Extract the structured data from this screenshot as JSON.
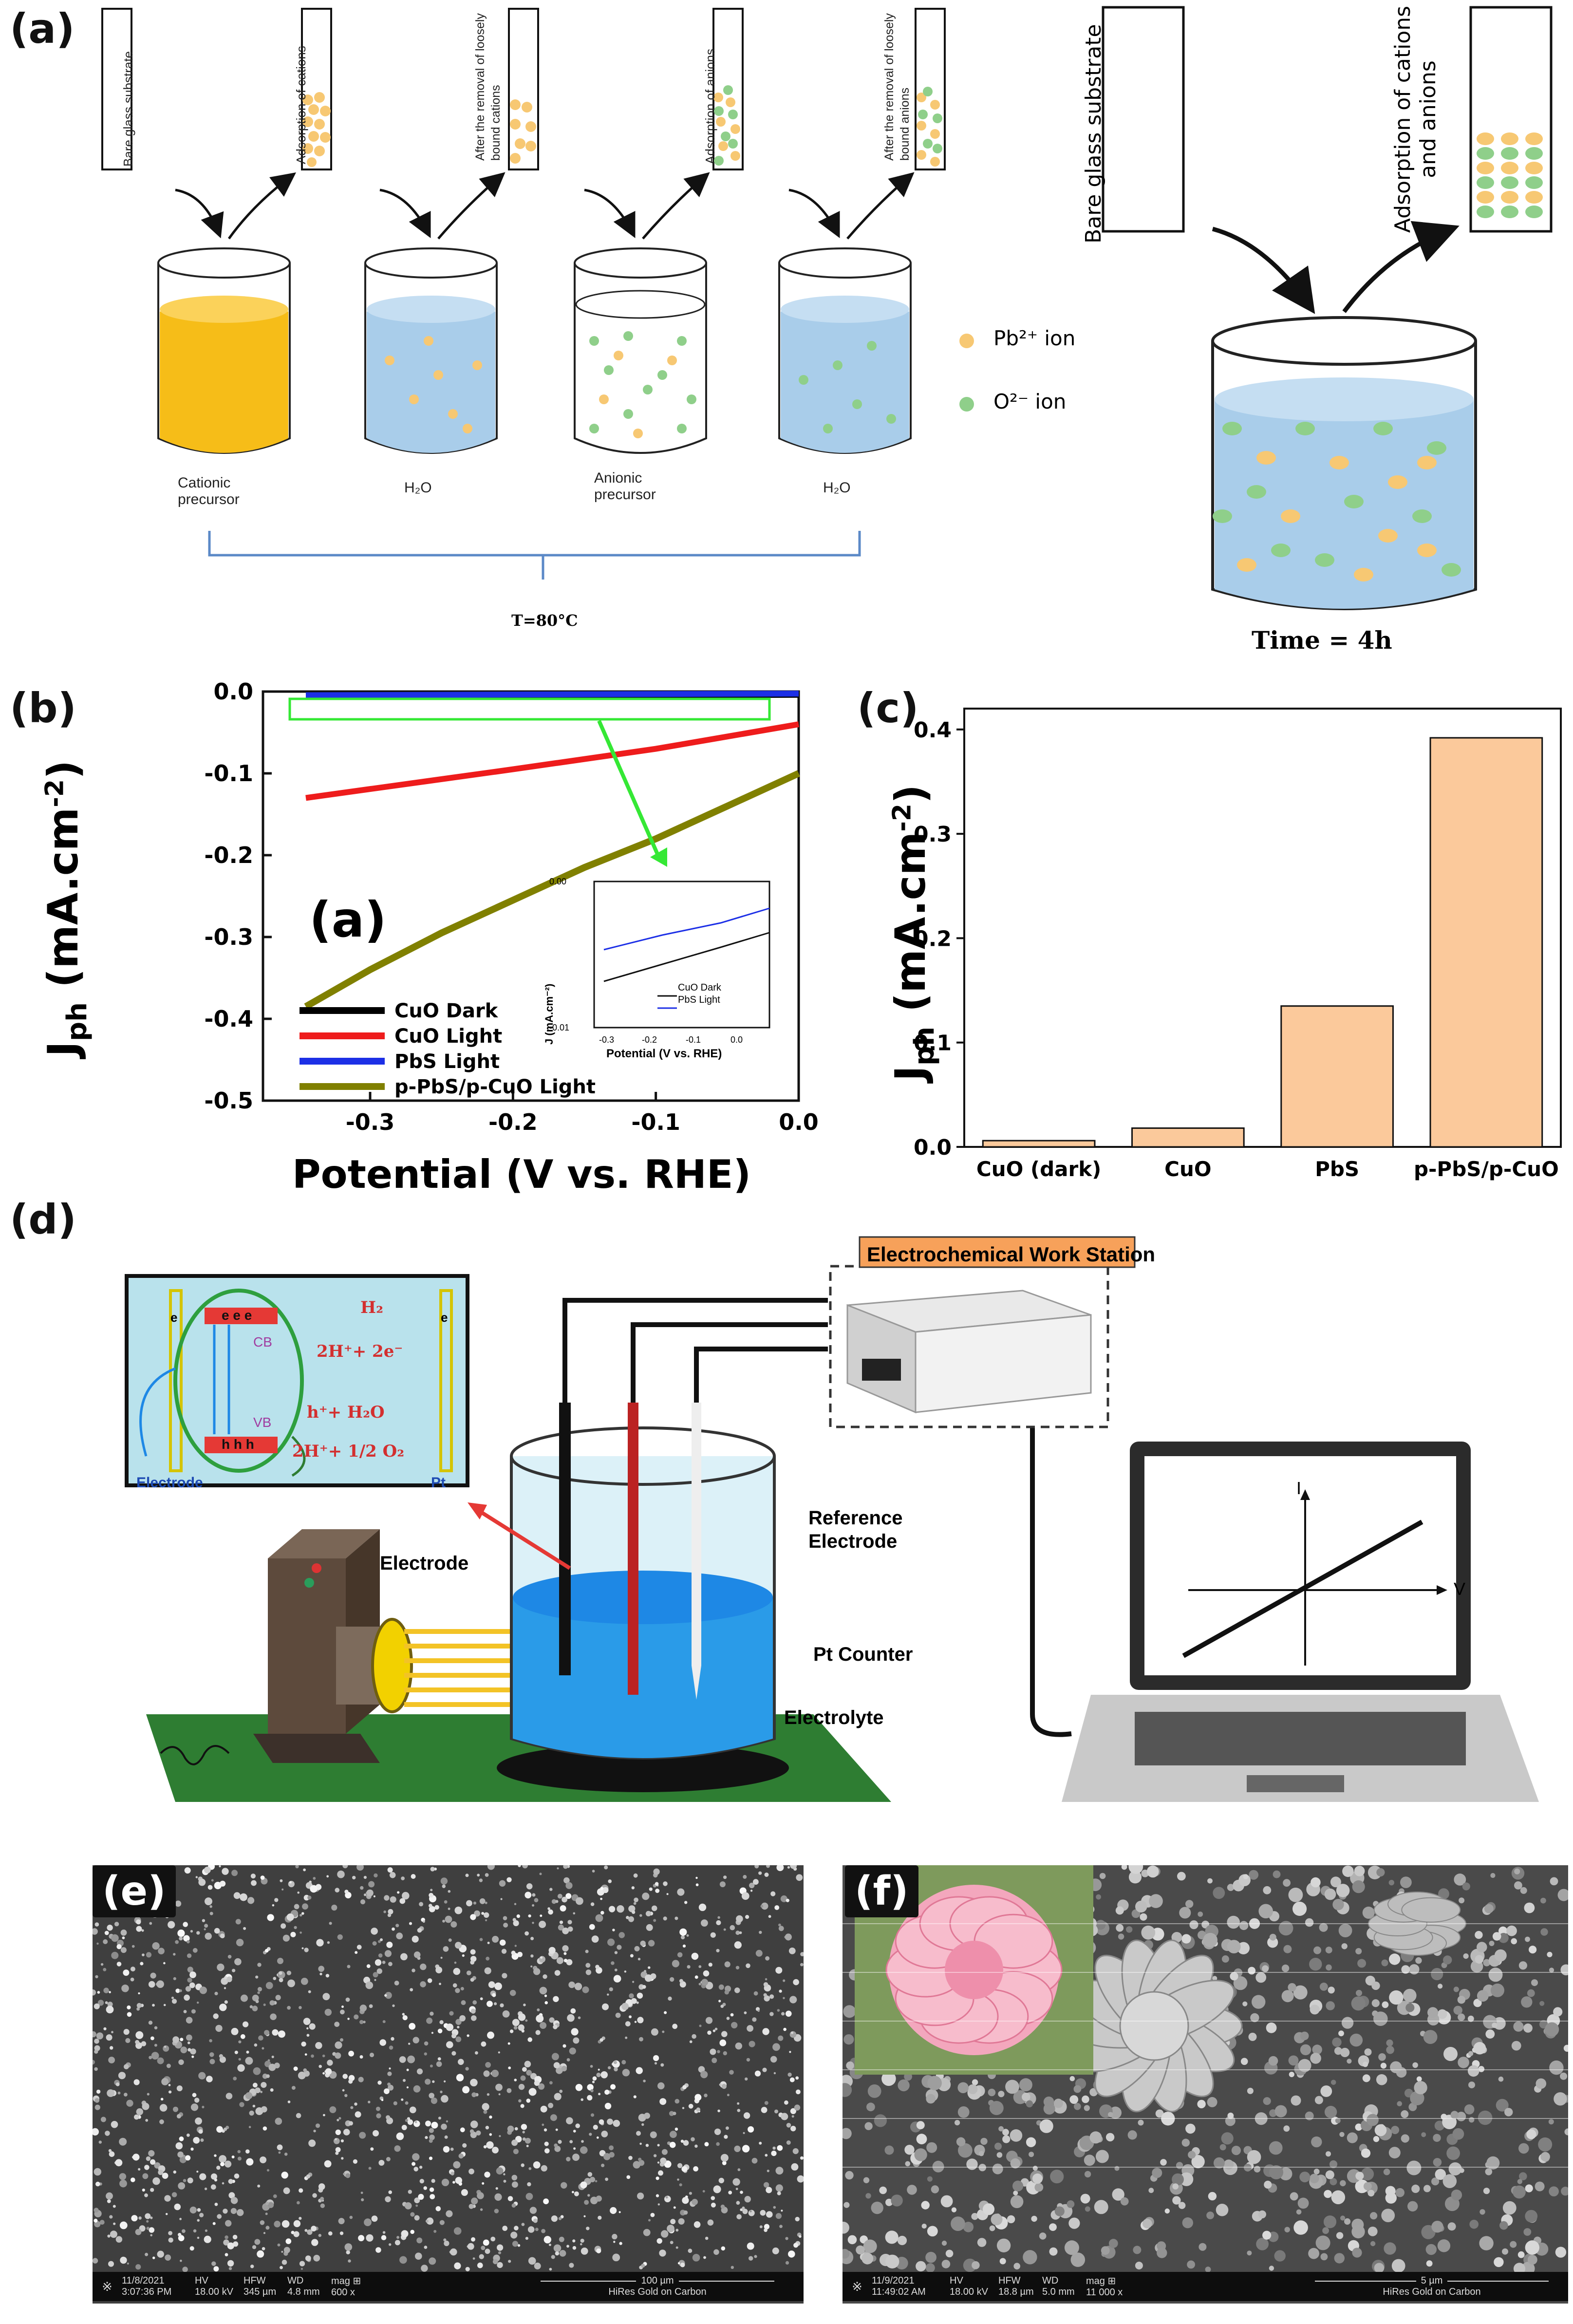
{
  "panels": {
    "a": {
      "label": "(a)",
      "tubes": [
        "Bare glass substrate",
        "Adsorption of cations",
        "After the removal of loosely bound cations",
        "Adsorption of anions",
        "After the removal of loosely bound anions"
      ],
      "beakers": [
        "Cationic precursor",
        "H₂O",
        "Anionic precursor",
        "H₂O"
      ],
      "temperature": "T=80°C",
      "legend": {
        "pb": "Pb²⁺ ion",
        "o": "O²⁻ ion"
      },
      "right_tubes": [
        "Bare glass substrate",
        "Adsorption of cations and anions"
      ],
      "time": "Time = 4h",
      "colors": {
        "pb": "#f7c873",
        "o": "#8fcf8a",
        "water": "#a9cdea",
        "precursor": "#f6bd18"
      }
    },
    "b": {
      "label": "(b)",
      "inner_label": "(a)",
      "ylabel_main": "J",
      "ylabel_sub": "ph",
      "ylabel_unit": " (mA.cm",
      "ylabel_exp": "-2",
      "ylabel_close": ")",
      "xlabel": "Potential (V vs. RHE)",
      "inset": {
        "ylabel": "J (mA.cm⁻²)",
        "xlabel": "Potential (V vs. RHE)",
        "xticks": [
          "-0.3",
          "-0.2",
          "-0.1",
          "0.0"
        ],
        "yticks": [
          "0.00",
          "-0.01"
        ],
        "legend": [
          "CuO Dark",
          "PbS Light"
        ]
      }
    },
    "c": {
      "label": "(c)",
      "ylabel_main": "J",
      "ylabel_sub": "ph",
      "ylabel_unit": " (mA.cm",
      "ylabel_exp": "-2",
      "ylabel_close": ")"
    },
    "d": {
      "label": "(d)",
      "workstation": "Electrochemical Work Station",
      "labels": {
        "reference": "Reference Electrode",
        "pt_counter": "Pt Counter",
        "electrolyte": "Electrolyte",
        "electrode": "Electrode"
      },
      "band": {
        "cb": "CB",
        "vb": "VB",
        "electrode": "Electrode",
        "pt": "Pt",
        "h2": "H₂",
        "h2_react": "2H⁺+ 2e⁻",
        "h_plus": "h⁺+  H₂O",
        "o2_react": "2H⁺+ 1/2 O₂",
        "electrons": "e e e",
        "holes": "h h h",
        "e_left": "e",
        "e_right": "e"
      },
      "laptop_axes": {
        "i": "I",
        "v": "V"
      }
    },
    "e": {
      "label": "(e)",
      "sem": {
        "date": "11/8/2021",
        "time": "3:07:36 PM",
        "hv": "18.00 kV",
        "hfw": "345 µm",
        "wd": "4.8 mm",
        "mag": "600 x",
        "scale": "100 µm",
        "coating": "HiRes Gold on Carbon",
        "h_hv": "HV",
        "h_hfw": "HFW",
        "h_wd": "WD",
        "h_mag": "mag ⊞"
      }
    },
    "f": {
      "label": "(f)",
      "sem": {
        "date": "11/9/2021",
        "time": "11:49:02 AM",
        "hv": "18.00 kV",
        "hfw": "18.8 µm",
        "wd": "5.0 mm",
        "mag": "11 000 x",
        "scale": "5 µm",
        "coating": "HiRes Gold on Carbon",
        "h_hv": "HV",
        "h_hfw": "HFW",
        "h_wd": "WD",
        "h_mag": "mag ⊞"
      }
    }
  },
  "chart_data": [
    {
      "type": "line",
      "title": "",
      "xlabel": "Potential (V vs. RHE)",
      "ylabel": "Jph (mA.cm-2)",
      "xlim": [
        -0.375,
        0.0
      ],
      "ylim": [
        -0.5,
        0.0
      ],
      "xticks": [
        -0.3,
        -0.2,
        -0.1,
        0.0
      ],
      "yticks": [
        0.0,
        -0.1,
        -0.2,
        -0.3,
        -0.4,
        -0.5
      ],
      "series": [
        {
          "name": "CuO Dark",
          "color": "#000000",
          "x": [
            -0.345,
            0.0
          ],
          "y": [
            -0.006,
            -0.004
          ]
        },
        {
          "name": "CuO Light",
          "color": "#ee1c1c",
          "x": [
            -0.345,
            -0.2,
            -0.1,
            0.0
          ],
          "y": [
            -0.13,
            -0.095,
            -0.07,
            -0.04
          ]
        },
        {
          "name": "PbS Light",
          "color": "#1c2fe6",
          "x": [
            -0.345,
            0.0
          ],
          "y": [
            -0.0045,
            -0.0025
          ]
        },
        {
          "name": "p-PbS/p-CuO Light",
          "color": "#808000",
          "x": [
            -0.345,
            -0.3,
            -0.25,
            -0.2,
            -0.15,
            -0.1,
            -0.05,
            0.0
          ],
          "y": [
            -0.385,
            -0.34,
            -0.295,
            -0.255,
            -0.215,
            -0.18,
            -0.14,
            -0.1
          ]
        }
      ],
      "legend": "bottom-left"
    },
    {
      "type": "bar",
      "title": "",
      "xlabel": "",
      "ylabel": "Jph (mA.cm-2)",
      "categories": [
        "CuO (dark)",
        "CuO",
        "PbS",
        "p-PbS/p-CuO"
      ],
      "values": [
        0.006,
        0.018,
        0.135,
        0.392
      ],
      "ylim": [
        0.0,
        0.42
      ],
      "yticks": [
        "0.0",
        "0.1",
        "0.2",
        "0.3",
        "0.4"
      ],
      "color": "#fbc99b"
    }
  ]
}
